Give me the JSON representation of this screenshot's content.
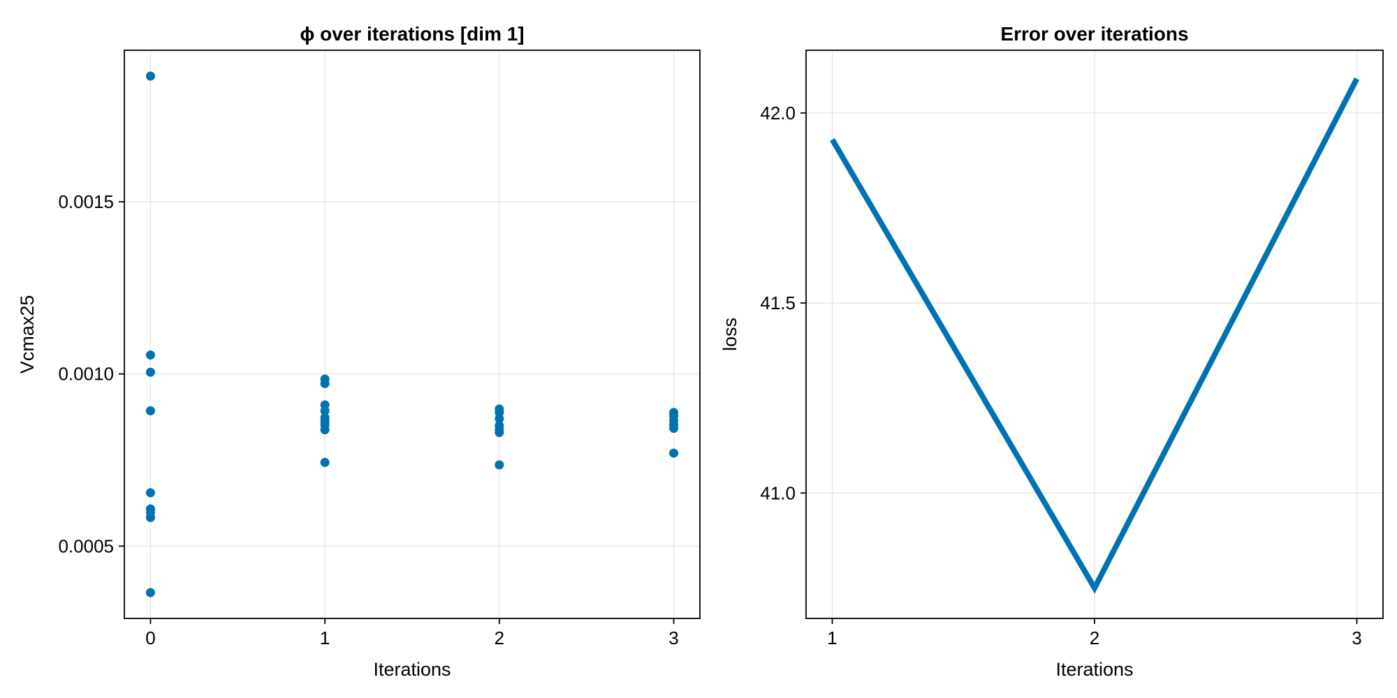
{
  "chart_data": [
    {
      "type": "scatter",
      "title": "ϕ over iterations [dim 1]",
      "xlabel": "Iterations",
      "ylabel": "Vcmax25",
      "xlim": [
        -0.15,
        3.15
      ],
      "ylim": [
        0.00029,
        0.00194
      ],
      "xticks": [
        0,
        1,
        2,
        3
      ],
      "xtick_labels": [
        "0",
        "1",
        "2",
        "3"
      ],
      "yticks": [
        0.0005,
        0.001,
        0.0015
      ],
      "ytick_labels": [
        "0.0005",
        "0.0010",
        "0.0015"
      ],
      "grid": true,
      "color": "#0072b2",
      "points": [
        {
          "x": 0,
          "y": 0.001865
        },
        {
          "x": 0,
          "y": 0.001055
        },
        {
          "x": 0,
          "y": 0.001005
        },
        {
          "x": 0,
          "y": 0.000893
        },
        {
          "x": 0,
          "y": 0.000655
        },
        {
          "x": 0,
          "y": 0.000608
        },
        {
          "x": 0,
          "y": 0.000597
        },
        {
          "x": 0,
          "y": 0.000583
        },
        {
          "x": 0,
          "y": 0.000365
        },
        {
          "x": 1,
          "y": 0.000985
        },
        {
          "x": 1,
          "y": 0.000972
        },
        {
          "x": 1,
          "y": 0.00091
        },
        {
          "x": 1,
          "y": 0.000893
        },
        {
          "x": 1,
          "y": 0.000873
        },
        {
          "x": 1,
          "y": 0.000862
        },
        {
          "x": 1,
          "y": 0.000852
        },
        {
          "x": 1,
          "y": 0.000838
        },
        {
          "x": 1,
          "y": 0.000743
        },
        {
          "x": 2,
          "y": 0.000898
        },
        {
          "x": 2,
          "y": 0.000888
        },
        {
          "x": 2,
          "y": 0.00087
        },
        {
          "x": 2,
          "y": 0.00085
        },
        {
          "x": 2,
          "y": 0.000838
        },
        {
          "x": 2,
          "y": 0.00083
        },
        {
          "x": 2,
          "y": 0.000736
        },
        {
          "x": 3,
          "y": 0.000888
        },
        {
          "x": 3,
          "y": 0.000878
        },
        {
          "x": 3,
          "y": 0.000865
        },
        {
          "x": 3,
          "y": 0.000852
        },
        {
          "x": 3,
          "y": 0.000842
        },
        {
          "x": 3,
          "y": 0.00077
        }
      ]
    },
    {
      "type": "line",
      "title": "Error over iterations",
      "xlabel": "Iterations",
      "ylabel": "loss",
      "xlim": [
        0.9,
        3.1
      ],
      "ylim": [
        40.67,
        42.165
      ],
      "xticks": [
        1,
        2,
        3
      ],
      "xtick_labels": [
        "1",
        "2",
        "3"
      ],
      "yticks": [
        41.0,
        41.5,
        42.0
      ],
      "ytick_labels": [
        "41.0",
        "41.5",
        "42.0"
      ],
      "grid": true,
      "color": "#0072b2",
      "x": [
        1,
        2,
        3
      ],
      "y": [
        41.93,
        40.75,
        42.09
      ]
    }
  ]
}
